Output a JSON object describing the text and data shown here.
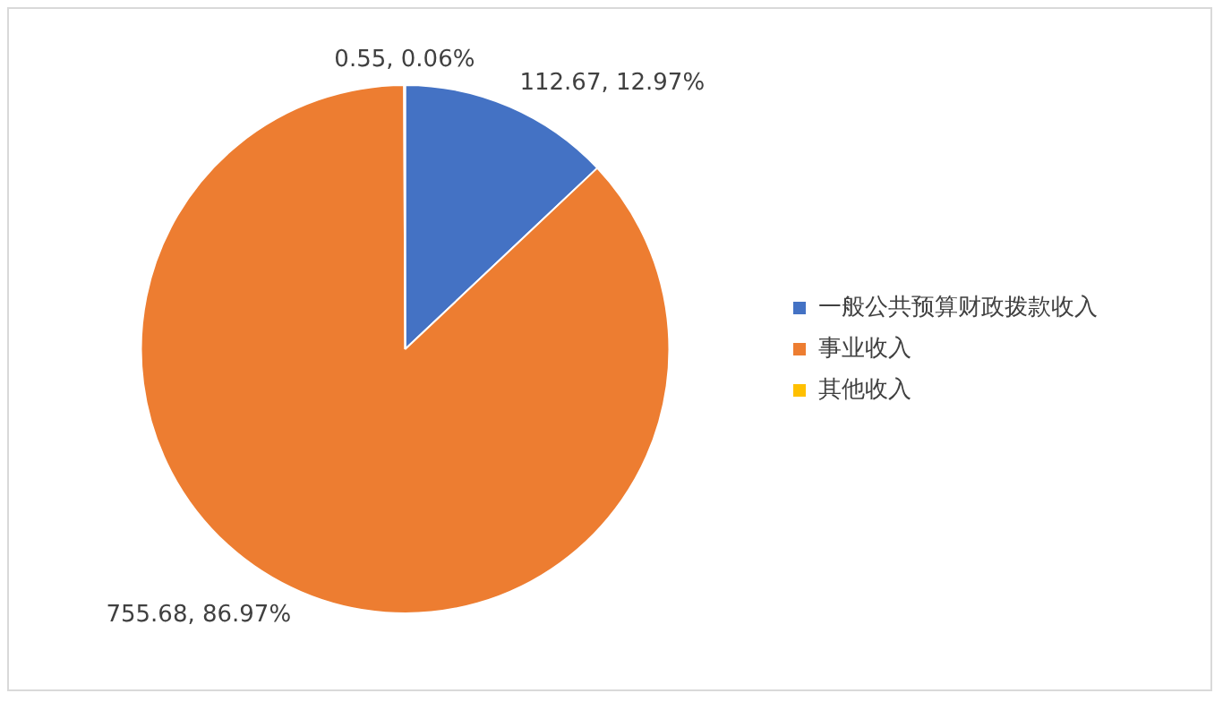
{
  "chart_data": {
    "type": "pie",
    "categories": [
      "一般公共预算财政拨款收入",
      "事业收入",
      "其他收入"
    ],
    "values": [
      112.67,
      755.68,
      0.55
    ],
    "colors": [
      "#4472c4",
      "#ed7d31",
      "#ffc000"
    ],
    "value_labels": [
      "112.67, 12.97%",
      "755.68, 86.97%",
      "0.55, 0.06%"
    ],
    "legend": "right"
  }
}
